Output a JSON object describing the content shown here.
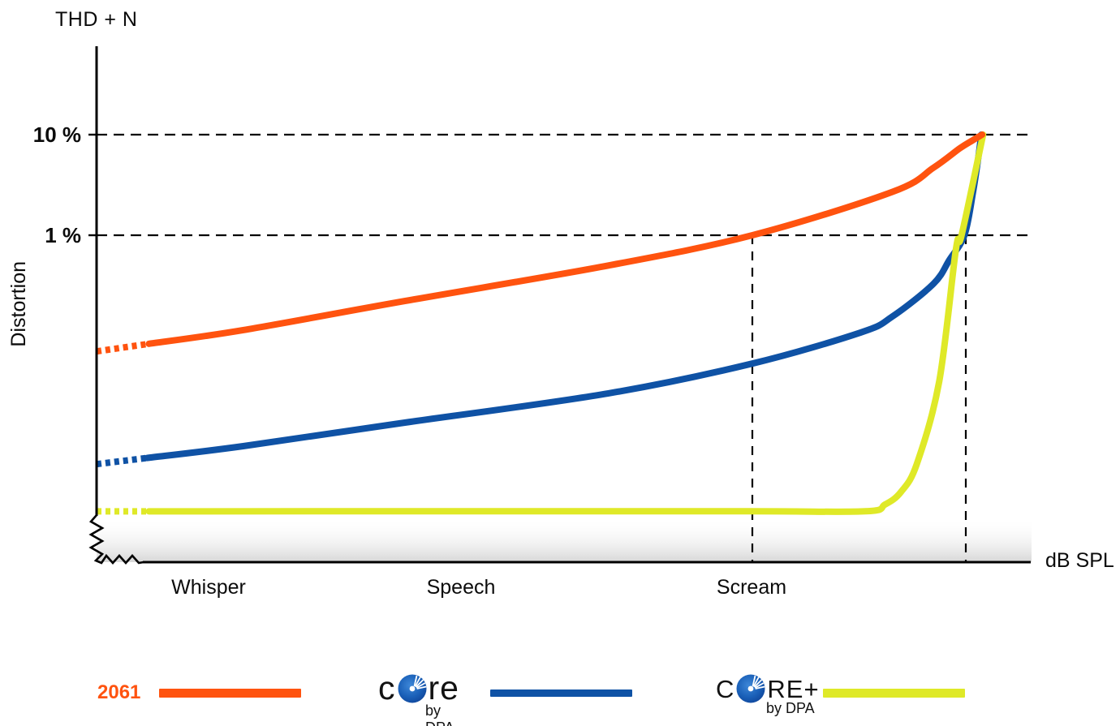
{
  "chart_data": {
    "type": "line",
    "title": "THD + N",
    "ylabel": "Distortion",
    "xlabel": "dB SPL",
    "x_axis": {
      "unit": "dB SPL",
      "range": [
        0,
        100
      ],
      "labels": [
        {
          "text": "Whisper",
          "x": 12
        },
        {
          "text": "Speech",
          "x": 39
        },
        {
          "text": "Scream",
          "x": 70.2
        }
      ]
    },
    "y_axis": {
      "scale": "log",
      "unit": "% distortion (THD+N)",
      "range_pct": [
        0.001,
        30
      ],
      "ticks": [
        {
          "label": "10 %",
          "value": 10
        },
        {
          "label": "1 %",
          "value": 1
        }
      ]
    },
    "guides": {
      "horizontal_pct": [
        10,
        1
      ],
      "vertical_spl": [
        70.2,
        93.05
      ],
      "note": "dashed reference lines; verticals drop from the 1% level to the SPL axis"
    },
    "series": [
      {
        "name": "2061",
        "color": "#FF530F",
        "dotted_until": 5.6,
        "points": [
          [
            0,
            0.07
          ],
          [
            15.7,
            0.114
          ],
          [
            33,
            0.222
          ],
          [
            54.8,
            0.5
          ],
          [
            70.2,
            1.0
          ],
          [
            85.2,
            2.7
          ],
          [
            89.6,
            4.7
          ],
          [
            92.4,
            7.3
          ],
          [
            93.8,
            8.8
          ],
          [
            94.8,
            10
          ]
        ]
      },
      {
        "name": "CORE by DPA",
        "color": "#0F52A5",
        "dotted_until": 5.4,
        "points": [
          [
            0,
            0.0053
          ],
          [
            15.7,
            0.008
          ],
          [
            33,
            0.0137
          ],
          [
            54.8,
            0.0268
          ],
          [
            70.2,
            0.053
          ],
          [
            81.8,
            0.108
          ],
          [
            85.2,
            0.156
          ],
          [
            89.6,
            0.33
          ],
          [
            91.3,
            0.57
          ],
          [
            92.9,
            1.0
          ],
          [
            93.8,
            2.6
          ],
          [
            94.4,
            6.0
          ],
          [
            94.7,
            10
          ]
        ]
      },
      {
        "name": "CORE+ by DPA",
        "color": "#DFE928",
        "dotted_until": 5.6,
        "points": [
          [
            0,
            0.0018
          ],
          [
            40,
            0.0018
          ],
          [
            70,
            0.0018
          ],
          [
            82.3,
            0.0018
          ],
          [
            84.4,
            0.0021
          ],
          [
            86.1,
            0.0028
          ],
          [
            87.8,
            0.0053
          ],
          [
            90.2,
            0.035
          ],
          [
            92,
            0.73
          ],
          [
            92.6,
            1.0
          ],
          [
            94.9,
            10
          ]
        ]
      }
    ]
  },
  "legend": {
    "items": [
      {
        "label": "2061",
        "swatch_color": "#FF530F"
      },
      {
        "word_start": "c",
        "word_end": "re",
        "sub": "by DPA",
        "swatch_color": "#0F52A5",
        "name": "CORE by DPA"
      },
      {
        "word_start": "C",
        "word_end": "RE+",
        "sub": "by DPA",
        "swatch_color": "#DFE928",
        "name": "CORE+ by DPA"
      }
    ]
  },
  "icons": {
    "disc": "dpa-core-disc-icon"
  },
  "colors": {
    "axis": "#000000",
    "orange": "#FF530F",
    "blue": "#0F52A5",
    "yellow": "#DFE928"
  }
}
